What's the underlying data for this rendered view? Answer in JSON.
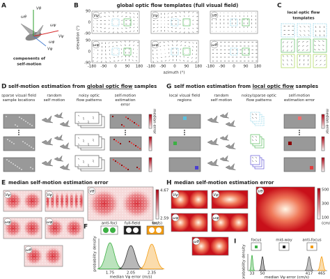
{
  "A": {
    "label": "A",
    "symbols": [
      "Vθ",
      "ωθ",
      "Vφ",
      "ωφ",
      "Vψ",
      "ωψ"
    ],
    "caption": [
      "components of",
      "self-motion"
    ]
  },
  "B": {
    "label": "B",
    "title": "global optic flow templates (full visual field)",
    "y_axis": "elevation (°)",
    "x_axis": "azimuth (°)",
    "x_ticks": [
      "-180",
      "-90",
      "0",
      "90",
      "180"
    ],
    "y_ticks": [
      "90",
      "0",
      "-90"
    ],
    "templates": [
      "Vψ",
      "Vφ",
      "Vθ",
      "ωψ",
      "ωφ",
      "ωθ"
    ]
  },
  "C": {
    "label": "C",
    "title": [
      "local optic flow",
      "templates"
    ]
  },
  "D": {
    "label": "D",
    "title": [
      "self-motion estimation from ",
      "global optic flow",
      " samples"
    ],
    "columns": [
      [
        "sparse visual field",
        "sample locations"
      ],
      [
        "random",
        "self motion"
      ],
      [
        "noisy optic",
        "flow patterns"
      ],
      [
        "self-motion",
        "estimation",
        "error"
      ]
    ],
    "colorbar": "median error"
  },
  "E": {
    "label": "E",
    "title": "median self-motion estimation error",
    "maps": [
      "Vψ",
      "Vφ",
      "Vθ",
      "ωψ",
      "ωφ",
      "ωθ"
    ],
    "colorbar_ticks": [
      "4.67",
      "2.59"
    ],
    "colorbar_unit": "(m/s)"
  },
  "F": {
    "label": "F",
    "legend": [
      "anti-foci",
      "full-field",
      "foci"
    ],
    "y_axis": "probability density",
    "x_axis": "median Vψ error (m/s)",
    "x_ticks": [
      "1.75",
      "2.05",
      "2.35"
    ]
  },
  "G": {
    "label": "G",
    "title": [
      "self motion estimation from ",
      "local optic flow",
      " samples"
    ],
    "columns": [
      [
        "local visual field",
        "regions"
      ],
      [
        "random",
        "self motion"
      ],
      [
        "noisy/sparse optic",
        "flow patterns"
      ],
      [
        "self-motion",
        "estimation error"
      ]
    ],
    "colorbar": "median error"
  },
  "H": {
    "label": "H",
    "title": "median self-motion estimation error",
    "maps": [
      "Vψ",
      "Vφ",
      "Vθ",
      "ωψ",
      "ωφ",
      "ωθ"
    ],
    "colorbar_ticks": [
      "500",
      "300",
      "100"
    ],
    "colorbar_unit": "(cm/s)"
  },
  "I": {
    "label": "I",
    "legend": [
      "focus",
      "mid-way",
      "anti-focus"
    ],
    "y_axis": "probability density",
    "x_axis": "median Vψ error (cm/s)",
    "x_ticks": [
      "33",
      "50",
      "417",
      "465"
    ]
  }
}
